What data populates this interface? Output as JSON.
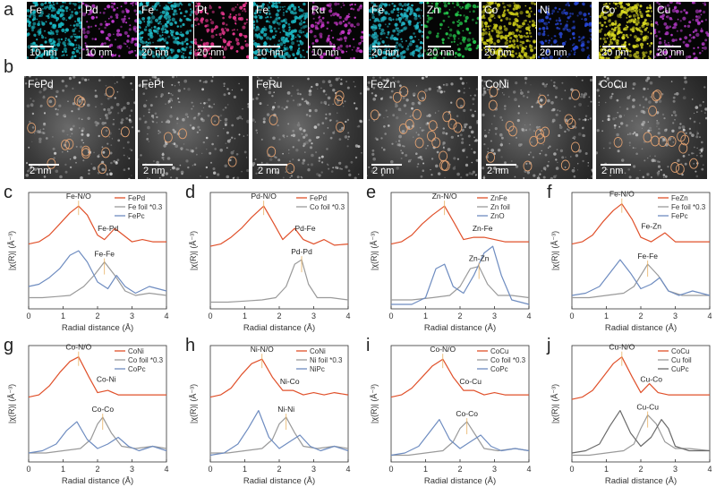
{
  "panel_letters": {
    "a": "a",
    "b": "b",
    "c": "c",
    "d": "d",
    "e": "e",
    "f": "f",
    "g": "g",
    "h": "h",
    "i": "i",
    "j": "j"
  },
  "eds_maps": [
    {
      "element": "Fe",
      "scale": "10 nm",
      "color": "#19b6c1"
    },
    {
      "element": "Pd",
      "scale": "10 nm",
      "color": "#c03ad0"
    },
    {
      "element": "Fe",
      "scale": "20 nm",
      "color": "#1fb8c4"
    },
    {
      "element": "Pt",
      "scale": "20 nm",
      "color": "#e8388e"
    },
    {
      "element": "Fe",
      "scale": "10 nm",
      "color": "#1bb4c0"
    },
    {
      "element": "Ru",
      "scale": "10 nm",
      "color": "#c738c9"
    },
    {
      "element": "Fe",
      "scale": "20 nm",
      "color": "#22b4c4"
    },
    {
      "element": "Zn",
      "scale": "20 nm",
      "color": "#23c24a"
    },
    {
      "element": "Co",
      "scale": "20 nm",
      "color": "#c8c818"
    },
    {
      "element": "Ni",
      "scale": "20 nm",
      "color": "#2848d8"
    },
    {
      "element": "Co",
      "scale": "20 nm",
      "color": "#d8d820"
    },
    {
      "element": "Cu",
      "scale": "20 nm",
      "color": "#b43ac8"
    }
  ],
  "stem_images": [
    {
      "title": "FePd",
      "scale": "2 nm"
    },
    {
      "title": "FePt",
      "scale": "2 nm"
    },
    {
      "title": "FeRu",
      "scale": "2 nm"
    },
    {
      "title": "FeZn",
      "scale": "2 nm"
    },
    {
      "title": "CoNi",
      "scale": "2 nm"
    },
    {
      "title": "CoCu",
      "scale": "2 nm"
    }
  ],
  "axis": {
    "xlabel": "Radial distance (Å)",
    "ylabel": "|χ(R)| (Å⁻³)",
    "xticks": [
      "0",
      "1",
      "2",
      "3",
      "4"
    ],
    "xlim": [
      0,
      4
    ]
  },
  "chart_data": [
    {
      "type": "line",
      "panel": "c",
      "legend": [
        "FePd",
        "Fe foil *0.3",
        "FePc"
      ],
      "annotations": [
        "Fe-N/O",
        "Fe-Pd",
        "Fe-Fe"
      ],
      "series": [
        {
          "name": "FePd",
          "color": "#e0502a",
          "x": [
            0,
            0.3,
            0.6,
            0.9,
            1.2,
            1.45,
            1.7,
            2.0,
            2.2,
            2.5,
            2.75,
            3.0,
            3.3,
            3.6,
            4.0
          ],
          "y": [
            0.58,
            0.6,
            0.66,
            0.76,
            0.86,
            0.92,
            0.84,
            0.66,
            0.62,
            0.72,
            0.66,
            0.6,
            0.62,
            0.6,
            0.6
          ]
        },
        {
          "name": "Fe foil *0.3",
          "color": "#9a9a9a",
          "x": [
            0,
            0.4,
            0.8,
            1.2,
            1.6,
            1.9,
            2.2,
            2.5,
            2.8,
            3.1,
            3.5,
            4.0
          ],
          "y": [
            0.1,
            0.1,
            0.11,
            0.12,
            0.2,
            0.3,
            0.42,
            0.3,
            0.16,
            0.12,
            0.14,
            0.12
          ]
        },
        {
          "name": "FePc",
          "color": "#6e8cc0",
          "x": [
            0,
            0.3,
            0.6,
            0.9,
            1.2,
            1.45,
            1.7,
            2.0,
            2.3,
            2.55,
            2.8,
            3.1,
            3.5,
            4.0
          ],
          "y": [
            0.2,
            0.22,
            0.28,
            0.36,
            0.48,
            0.52,
            0.42,
            0.24,
            0.18,
            0.3,
            0.2,
            0.14,
            0.2,
            0.16
          ]
        }
      ]
    },
    {
      "type": "line",
      "panel": "d",
      "legend": [
        "FePd",
        "Co foil *0.3"
      ],
      "annotations": [
        "Pd-N/O",
        "Pd-Fe",
        "Pd-Pd"
      ],
      "series": [
        {
          "name": "FePd",
          "color": "#e0502a",
          "x": [
            0,
            0.3,
            0.6,
            0.9,
            1.2,
            1.55,
            1.85,
            2.1,
            2.45,
            2.7,
            3.0,
            3.3,
            3.6,
            4.0
          ],
          "y": [
            0.56,
            0.58,
            0.64,
            0.72,
            0.82,
            0.92,
            0.76,
            0.62,
            0.72,
            0.62,
            0.58,
            0.62,
            0.57,
            0.58
          ]
        },
        {
          "name": "Co foil *0.3",
          "color": "#9a9a9a",
          "x": [
            0,
            0.5,
            1.0,
            1.5,
            1.9,
            2.2,
            2.45,
            2.65,
            2.85,
            3.1,
            3.5,
            4.0
          ],
          "y": [
            0.06,
            0.06,
            0.07,
            0.08,
            0.1,
            0.2,
            0.4,
            0.44,
            0.22,
            0.1,
            0.1,
            0.08
          ]
        }
      ]
    },
    {
      "type": "line",
      "panel": "e",
      "legend": [
        "ZnFe",
        "Zn foil",
        "ZnO"
      ],
      "annotations": [
        "Zn-N/O",
        "Zn-Fe",
        "Zn-Zn"
      ],
      "series": [
        {
          "name": "ZnFe",
          "color": "#e0502a",
          "x": [
            0,
            0.3,
            0.6,
            0.9,
            1.2,
            1.55,
            1.85,
            2.1,
            2.4,
            2.7,
            3.0,
            3.3,
            3.6,
            4.0
          ],
          "y": [
            0.58,
            0.6,
            0.66,
            0.76,
            0.84,
            0.92,
            0.76,
            0.62,
            0.64,
            0.64,
            0.62,
            0.6,
            0.6,
            0.6
          ]
        },
        {
          "name": "Zn foil",
          "color": "#9a9a9a",
          "x": [
            0,
            0.6,
            1.2,
            1.7,
            2.0,
            2.3,
            2.55,
            2.8,
            3.1,
            3.5,
            4.0
          ],
          "y": [
            0.08,
            0.08,
            0.1,
            0.12,
            0.2,
            0.36,
            0.38,
            0.22,
            0.12,
            0.12,
            0.1
          ]
        },
        {
          "name": "ZnO",
          "color": "#6e8cc0",
          "x": [
            0,
            0.6,
            1.0,
            1.3,
            1.55,
            1.8,
            2.1,
            2.4,
            2.7,
            2.95,
            3.2,
            3.5,
            4.0
          ],
          "y": [
            0.04,
            0.04,
            0.1,
            0.36,
            0.4,
            0.2,
            0.14,
            0.3,
            0.5,
            0.56,
            0.3,
            0.08,
            0.04
          ]
        }
      ]
    },
    {
      "type": "line",
      "panel": "f",
      "legend": [
        "FeZn",
        "Fe foil *0.3",
        "FePc"
      ],
      "annotations": [
        "Fe-N/O",
        "Fe-Zn",
        "Fe-Fe"
      ],
      "series": [
        {
          "name": "FeZn",
          "color": "#e0502a",
          "x": [
            0,
            0.3,
            0.6,
            0.9,
            1.2,
            1.45,
            1.75,
            2.0,
            2.3,
            2.7,
            3.0,
            3.3,
            3.6,
            4.0
          ],
          "y": [
            0.58,
            0.6,
            0.66,
            0.78,
            0.88,
            0.94,
            0.8,
            0.64,
            0.6,
            0.68,
            0.6,
            0.6,
            0.6,
            0.6
          ]
        },
        {
          "name": "Fe foil *0.3",
          "color": "#9a9a9a",
          "x": [
            0,
            0.5,
            1.0,
            1.5,
            1.8,
            2.0,
            2.2,
            2.5,
            2.8,
            3.2,
            4.0
          ],
          "y": [
            0.1,
            0.1,
            0.12,
            0.14,
            0.2,
            0.3,
            0.4,
            0.3,
            0.16,
            0.12,
            0.12
          ]
        },
        {
          "name": "FePc",
          "color": "#6e8cc0",
          "x": [
            0,
            0.4,
            0.8,
            1.1,
            1.4,
            1.7,
            2.0,
            2.3,
            2.55,
            2.8,
            3.1,
            3.5,
            4.0
          ],
          "y": [
            0.12,
            0.14,
            0.2,
            0.32,
            0.44,
            0.32,
            0.18,
            0.22,
            0.28,
            0.16,
            0.12,
            0.16,
            0.12
          ]
        }
      ]
    },
    {
      "type": "line",
      "panel": "g",
      "legend": [
        "CoNi",
        "Co foil *0.3",
        "CoPc"
      ],
      "annotations": [
        "Co-N/O",
        "Co-Ni",
        "Co-Co"
      ],
      "series": [
        {
          "name": "CoNi",
          "color": "#e0502a",
          "x": [
            0,
            0.3,
            0.6,
            0.9,
            1.2,
            1.45,
            1.75,
            2.0,
            2.3,
            2.6,
            2.9,
            3.2,
            3.6,
            4.0
          ],
          "y": [
            0.58,
            0.6,
            0.68,
            0.8,
            0.9,
            0.94,
            0.76,
            0.62,
            0.64,
            0.6,
            0.6,
            0.6,
            0.6,
            0.6
          ]
        },
        {
          "name": "Co foil *0.3",
          "color": "#9a9a9a",
          "x": [
            0,
            0.5,
            1.0,
            1.5,
            1.8,
            2.0,
            2.15,
            2.4,
            2.7,
            3.1,
            3.6,
            4.0
          ],
          "y": [
            0.08,
            0.08,
            0.1,
            0.12,
            0.2,
            0.34,
            0.4,
            0.26,
            0.14,
            0.12,
            0.14,
            0.12
          ]
        },
        {
          "name": "CoPc",
          "color": "#6e8cc0",
          "x": [
            0,
            0.4,
            0.8,
            1.1,
            1.4,
            1.7,
            2.0,
            2.3,
            2.6,
            2.9,
            3.2,
            3.6,
            4.0
          ],
          "y": [
            0.08,
            0.1,
            0.16,
            0.28,
            0.36,
            0.2,
            0.12,
            0.16,
            0.22,
            0.14,
            0.1,
            0.14,
            0.1
          ]
        }
      ]
    },
    {
      "type": "line",
      "panel": "h",
      "legend": [
        "CoNi",
        "Ni foil *0.3",
        "NiPc"
      ],
      "annotations": [
        "Ni-N/O",
        "Ni-Co",
        "Ni-Ni"
      ],
      "series": [
        {
          "name": "CoNi",
          "color": "#e0502a",
          "x": [
            0,
            0.3,
            0.6,
            0.9,
            1.2,
            1.5,
            1.8,
            2.1,
            2.4,
            2.7,
            3.0,
            3.3,
            3.6,
            4.0
          ],
          "y": [
            0.58,
            0.6,
            0.66,
            0.78,
            0.88,
            0.92,
            0.76,
            0.64,
            0.64,
            0.6,
            0.62,
            0.6,
            0.62,
            0.6
          ]
        },
        {
          "name": "Ni foil *0.3",
          "color": "#9a9a9a",
          "x": [
            0,
            0.5,
            1.0,
            1.5,
            1.8,
            2.0,
            2.2,
            2.45,
            2.7,
            3.1,
            3.6,
            4.0
          ],
          "y": [
            0.08,
            0.08,
            0.1,
            0.12,
            0.2,
            0.34,
            0.4,
            0.26,
            0.14,
            0.12,
            0.14,
            0.12
          ]
        },
        {
          "name": "NiPc",
          "color": "#6e8cc0",
          "x": [
            0,
            0.4,
            0.8,
            1.1,
            1.4,
            1.7,
            2.0,
            2.3,
            2.6,
            2.9,
            3.2,
            3.6,
            4.0
          ],
          "y": [
            0.06,
            0.08,
            0.16,
            0.3,
            0.46,
            0.22,
            0.12,
            0.18,
            0.24,
            0.14,
            0.1,
            0.14,
            0.1
          ]
        }
      ]
    },
    {
      "type": "line",
      "panel": "i",
      "legend": [
        "CoCu",
        "Co foil *0.3",
        "CoPc"
      ],
      "annotations": [
        "Co-N/O",
        "Co-Cu",
        "Co-Co"
      ],
      "series": [
        {
          "name": "CoCu",
          "color": "#e0502a",
          "x": [
            0,
            0.3,
            0.6,
            0.9,
            1.2,
            1.5,
            1.8,
            2.1,
            2.4,
            2.7,
            3.0,
            3.3,
            3.6,
            4.0
          ],
          "y": [
            0.58,
            0.6,
            0.66,
            0.76,
            0.86,
            0.92,
            0.76,
            0.64,
            0.64,
            0.6,
            0.62,
            0.6,
            0.6,
            0.6
          ]
        },
        {
          "name": "Co foil *0.3",
          "color": "#9a9a9a",
          "x": [
            0,
            0.5,
            1.0,
            1.5,
            1.8,
            2.0,
            2.2,
            2.45,
            2.7,
            3.1,
            3.6,
            4.0
          ],
          "y": [
            0.06,
            0.06,
            0.08,
            0.1,
            0.18,
            0.3,
            0.36,
            0.24,
            0.12,
            0.1,
            0.12,
            0.1
          ]
        },
        {
          "name": "CoPc",
          "color": "#6e8cc0",
          "x": [
            0,
            0.4,
            0.8,
            1.1,
            1.4,
            1.7,
            2.0,
            2.3,
            2.6,
            2.9,
            3.2,
            3.6,
            4.0
          ],
          "y": [
            0.06,
            0.08,
            0.14,
            0.26,
            0.38,
            0.2,
            0.12,
            0.18,
            0.24,
            0.14,
            0.1,
            0.12,
            0.1
          ]
        }
      ]
    },
    {
      "type": "line",
      "panel": "j",
      "legend": [
        "CoCu",
        "Cu foil",
        "CuPc"
      ],
      "annotations": [
        "Cu-N/O",
        "Cu-Co",
        "Cu-Cu"
      ],
      "series": [
        {
          "name": "CoCu",
          "color": "#e0502a",
          "x": [
            0,
            0.3,
            0.6,
            0.9,
            1.2,
            1.45,
            1.75,
            2.0,
            2.25,
            2.5,
            2.8,
            3.1,
            3.5,
            4.0
          ],
          "y": [
            0.56,
            0.58,
            0.64,
            0.76,
            0.88,
            0.94,
            0.76,
            0.62,
            0.7,
            0.62,
            0.6,
            0.6,
            0.6,
            0.6
          ]
        },
        {
          "name": "Cu foil",
          "color": "#9a9a9a",
          "x": [
            0,
            0.5,
            1.0,
            1.5,
            1.8,
            2.0,
            2.2,
            2.45,
            2.7,
            3.0,
            3.4,
            4.0
          ],
          "y": [
            0.06,
            0.06,
            0.08,
            0.1,
            0.16,
            0.3,
            0.42,
            0.34,
            0.18,
            0.12,
            0.12,
            0.1
          ]
        },
        {
          "name": "CuPc",
          "color": "#6a6a6a",
          "x": [
            0,
            0.4,
            0.8,
            1.1,
            1.4,
            1.7,
            2.0,
            2.3,
            2.6,
            2.8,
            3.0,
            3.4,
            4.0
          ],
          "y": [
            0.08,
            0.1,
            0.16,
            0.32,
            0.46,
            0.26,
            0.14,
            0.22,
            0.38,
            0.3,
            0.14,
            0.1,
            0.1
          ]
        }
      ]
    }
  ]
}
